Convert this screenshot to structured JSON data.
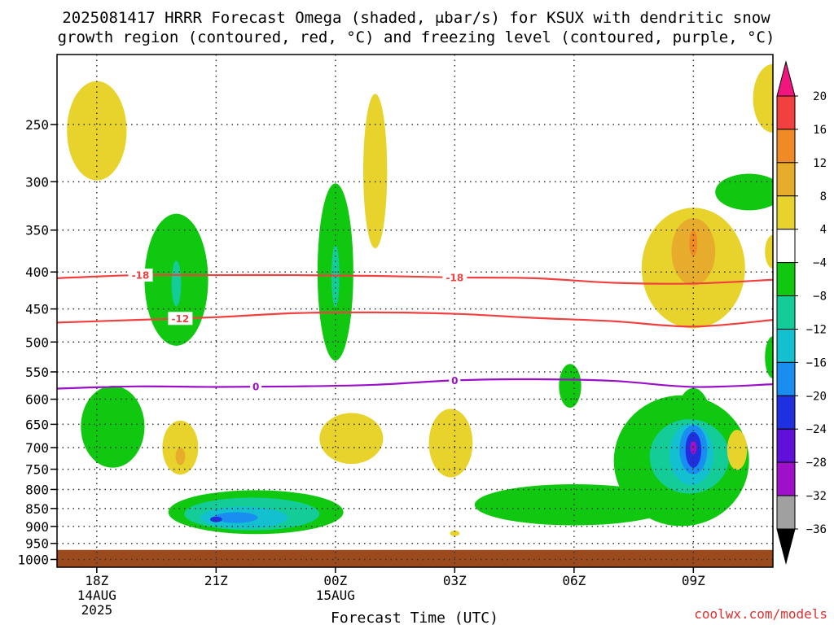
{
  "title_line1": "2025081417 HRRR Forecast Omega (shaded, μbar/s) for KSUX with dendritic snow",
  "title_line2": "growth region (contoured, red, °C) and freezing level (contoured, purple, °C)",
  "credit": "coolwx.com/models",
  "chart_data": {
    "type": "heatmap",
    "xlabel": "Forecast Time (UTC)",
    "ylabel": "",
    "x_ticks": [
      {
        "hour": 0,
        "lines": [
          "18Z",
          "14AUG",
          "2025"
        ]
      },
      {
        "hour": 3,
        "lines": [
          "21Z"
        ]
      },
      {
        "hour": 6,
        "lines": [
          "00Z",
          "15AUG"
        ]
      },
      {
        "hour": 9,
        "lines": [
          "03Z"
        ]
      },
      {
        "hour": 12,
        "lines": [
          "06Z"
        ]
      },
      {
        "hour": 15,
        "lines": [
          "09Z"
        ]
      }
    ],
    "x_range_hours": [
      -1,
      17
    ],
    "y_ticks_hpa": [
      250,
      300,
      350,
      400,
      450,
      500,
      550,
      600,
      650,
      700,
      750,
      800,
      850,
      900,
      950,
      1000
    ],
    "y_range_hpa": [
      200,
      1025
    ],
    "y_scale": "log-pressure",
    "grid": true,
    "ground_level_hpa": 970,
    "colors": {
      "ground": "#9b4a1e",
      "isotherm": "#f04040",
      "freezing_level": "#9a10c8"
    },
    "colorbar": {
      "labels": [
        "20",
        "16",
        "12",
        "8",
        "4",
        "−4",
        "−8",
        "−12",
        "−16",
        "−20",
        "−24",
        "−28",
        "−32",
        "−36"
      ],
      "bins": [
        {
          "range": ">20",
          "color": "#f0167e"
        },
        {
          "range": "16..20",
          "color": "#f04040"
        },
        {
          "range": "12..16",
          "color": "#f08a26"
        },
        {
          "range": "8..12",
          "color": "#e8ac2c"
        },
        {
          "range": "4..8",
          "color": "#e8d22c"
        },
        {
          "range": "-4..4",
          "color": "#ffffff"
        },
        {
          "range": "-8..-4",
          "color": "#10c810"
        },
        {
          "range": "-12..-8",
          "color": "#14cc98"
        },
        {
          "range": "-16..-12",
          "color": "#12c0d0"
        },
        {
          "range": "-20..-16",
          "color": "#1a8ef0"
        },
        {
          "range": "-24..-20",
          "color": "#2030e0"
        },
        {
          "range": "-28..-24",
          "color": "#6010d8"
        },
        {
          "range": "-32..-28",
          "color": "#a010c8"
        },
        {
          "range": "-36..-32",
          "color": "#a0a0a0"
        },
        {
          "range": "<-36",
          "color": "#000000"
        }
      ]
    },
    "omega_regions": [
      {
        "t": 0,
        "p": 255,
        "rt": 0.75,
        "rp": 40,
        "color": "#e8d22c"
      },
      {
        "t": 2.0,
        "p": 410,
        "rt": 0.8,
        "rp": 85,
        "color": "#10c810"
      },
      {
        "t": 2.0,
        "p": 415,
        "rt": 0.12,
        "rp": 30,
        "color": "#14cc98"
      },
      {
        "t": 6.0,
        "p": 400,
        "rt": 0.45,
        "rp": 110,
        "color": "#10c810"
      },
      {
        "t": 6.0,
        "p": 405,
        "rt": 0.1,
        "rp": 40,
        "color": "#14cc98"
      },
      {
        "t": 7.0,
        "p": 290,
        "rt": 0.3,
        "rp": 70,
        "color": "#e8d22c"
      },
      {
        "t": 16.4,
        "p": 310,
        "rt": 0.85,
        "rp": 18,
        "color": "#10c810"
      },
      {
        "t": 17.0,
        "p": 230,
        "rt": 0.5,
        "rp": 25,
        "color": "#e8d22c"
      },
      {
        "t": 17.0,
        "p": 375,
        "rt": 0.2,
        "rp": 20,
        "color": "#e8d22c"
      },
      {
        "t": 17.0,
        "p": 525,
        "rt": 0.2,
        "rp": 35,
        "color": "#10c810"
      },
      {
        "t": 15.0,
        "p": 395,
        "rt": 1.3,
        "rp": 75,
        "color": "#e8d22c"
      },
      {
        "t": 15.0,
        "p": 375,
        "rt": 0.55,
        "rp": 40,
        "color": "#e8ac2c"
      },
      {
        "t": 15.0,
        "p": 365,
        "rt": 0.1,
        "rp": 15,
        "color": "#f08a26"
      },
      {
        "t": 0.4,
        "p": 655,
        "rt": 0.8,
        "rp": 85,
        "color": "#10c810"
      },
      {
        "t": 2.1,
        "p": 700,
        "rt": 0.45,
        "rp": 60,
        "color": "#e8d22c"
      },
      {
        "t": 2.1,
        "p": 720,
        "rt": 0.12,
        "rp": 20,
        "color": "#e8ac2c"
      },
      {
        "t": 6.4,
        "p": 680,
        "rt": 0.8,
        "rp": 55,
        "color": "#e8d22c"
      },
      {
        "t": 8.9,
        "p": 690,
        "rt": 0.55,
        "rp": 75,
        "color": "#e8d22c"
      },
      {
        "t": 11.9,
        "p": 575,
        "rt": 0.28,
        "rp": 40,
        "color": "#10c810"
      },
      {
        "t": 4.0,
        "p": 860,
        "rt": 2.2,
        "rp": 60,
        "color": "#10c810"
      },
      {
        "t": 3.9,
        "p": 865,
        "rt": 1.7,
        "rp": 45,
        "color": "#14cc98"
      },
      {
        "t": 3.7,
        "p": 875,
        "rt": 1.1,
        "rp": 30,
        "color": "#12c0d0"
      },
      {
        "t": 3.5,
        "p": 875,
        "rt": 0.55,
        "rp": 15,
        "color": "#1a8ef0"
      },
      {
        "t": 3.0,
        "p": 880,
        "rt": 0.15,
        "rp": 8,
        "color": "#2030e0"
      },
      {
        "t": 12.0,
        "p": 840,
        "rt": 2.5,
        "rp": 55,
        "color": "#10c810"
      },
      {
        "t": 14.7,
        "p": 730,
        "rt": 1.7,
        "rp": 150,
        "color": "#10c810"
      },
      {
        "t": 15.0,
        "p": 690,
        "rt": 0.55,
        "rp": 120,
        "color": "#10c810"
      },
      {
        "t": 14.9,
        "p": 720,
        "rt": 1.0,
        "rp": 85,
        "color": "#14cc98"
      },
      {
        "t": 14.95,
        "p": 715,
        "rt": 0.55,
        "rp": 70,
        "color": "#12c0d0"
      },
      {
        "t": 15.0,
        "p": 705,
        "rt": 0.35,
        "rp": 55,
        "color": "#1a8ef0"
      },
      {
        "t": 15.0,
        "p": 705,
        "rt": 0.2,
        "rp": 40,
        "color": "#2030e0"
      },
      {
        "t": 15.0,
        "p": 700,
        "rt": 0.08,
        "rp": 15,
        "color": "#a010c8"
      },
      {
        "t": 16.1,
        "p": 705,
        "rt": 0.25,
        "rp": 45,
        "color": "#e8d22c"
      },
      {
        "t": 9.0,
        "p": 920,
        "rt": 0.12,
        "rp": 8,
        "color": "#e8d22c"
      }
    ],
    "isotherms": [
      {
        "label": "-18",
        "color": "#f04040",
        "label_at_hours": [
          1.1,
          9.0
        ],
        "points": [
          [
            -1,
            408
          ],
          [
            1,
            404
          ],
          [
            3,
            404
          ],
          [
            5,
            404
          ],
          [
            7,
            405
          ],
          [
            9,
            407
          ],
          [
            11,
            408
          ],
          [
            13,
            414
          ],
          [
            15,
            415
          ],
          [
            17,
            410
          ]
        ]
      },
      {
        "label": "-12",
        "color": "#f04040",
        "label_at_hours": [
          2.1
        ],
        "points": [
          [
            -1,
            470
          ],
          [
            1,
            466
          ],
          [
            3,
            462
          ],
          [
            5,
            456
          ],
          [
            7,
            455
          ],
          [
            9,
            457
          ],
          [
            11,
            463
          ],
          [
            13,
            468
          ],
          [
            15,
            476
          ],
          [
            17,
            466
          ]
        ]
      },
      {
        "label": "0",
        "color": "#9a10c8",
        "label_at_hours": [
          4.0,
          9.0
        ],
        "points": [
          [
            -1,
            580
          ],
          [
            1,
            576
          ],
          [
            3,
            577
          ],
          [
            5,
            576
          ],
          [
            7,
            573
          ],
          [
            9,
            565
          ],
          [
            11,
            563
          ],
          [
            13,
            566
          ],
          [
            15,
            577
          ],
          [
            17,
            572
          ]
        ]
      }
    ]
  }
}
